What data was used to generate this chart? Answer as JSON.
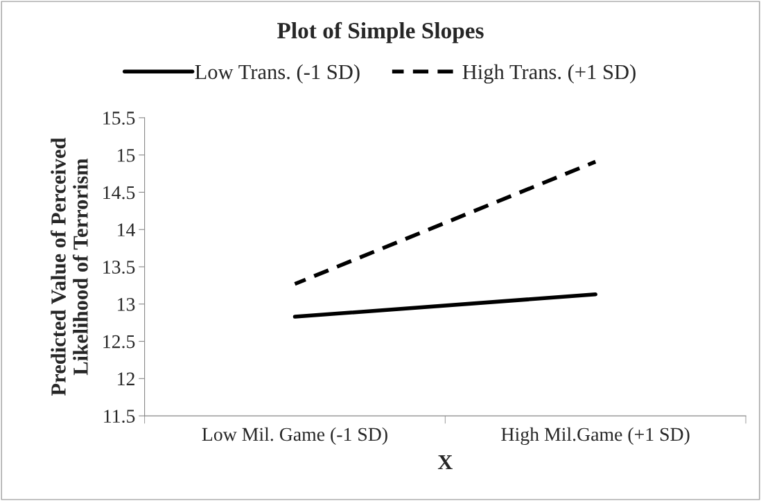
{
  "chart_data": {
    "type": "line",
    "title": "Plot of Simple Slopes",
    "xlabel": "X",
    "ylabel": "Predicted Value of Perceived\nLikelihood of Terrorism",
    "categories": [
      "Low Mil. Game (-1 SD)",
      "High Mil.Game (+1 SD)"
    ],
    "series": [
      {
        "name": "Low Trans. (-1 SD)",
        "color": "#000000",
        "line_style": "solid",
        "values": [
          12.83,
          13.13
        ]
      },
      {
        "name": "High Trans. (+1 SD)",
        "color": "#000000",
        "line_style": "dashed",
        "values": [
          13.27,
          14.91
        ]
      }
    ],
    "ylim": [
      11.5,
      15.5
    ],
    "yticks": [
      11.5,
      12,
      12.5,
      13,
      13.5,
      14,
      14.5,
      15,
      15.5
    ],
    "grid": false,
    "legend": "top",
    "marker": "none"
  }
}
